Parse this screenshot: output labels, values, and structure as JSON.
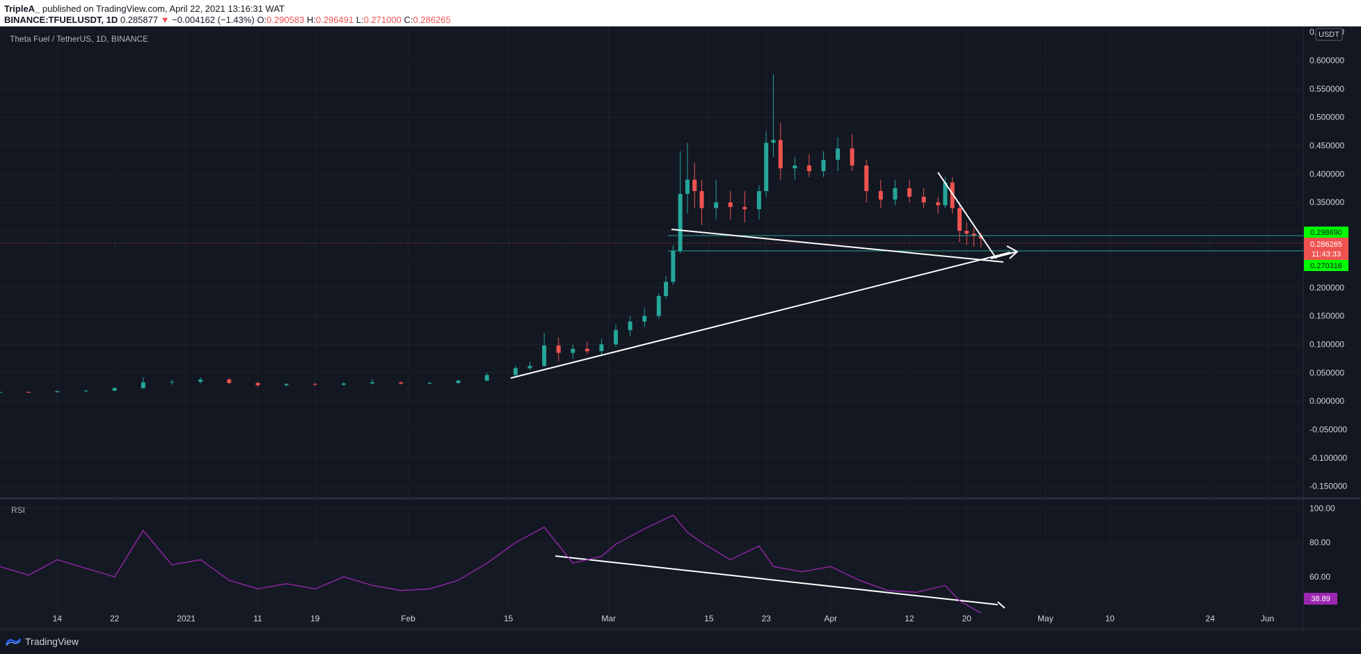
{
  "header": {
    "author": "TripleA_",
    "published": " published on TradingView.com, April 22, 2021 13:16:31 WAT",
    "symbol": "BINANCE:TFUELUSDT, 1D",
    "last": "0.285877",
    "change_arrow": "▼",
    "change": "−0.004162 (−1.43%)",
    "o_label": "O:",
    "o_val": "0.290583",
    "h_label": "H:",
    "h_val": "0.296491",
    "l_label": "L:",
    "l_val": "0.271000",
    "c_label": "C:",
    "c_val": "0.286265"
  },
  "chart": {
    "legend": "Theta Fuel / TetherUS, 1D, BINANCE",
    "currency": "USDT",
    "price_axis_ticks": [
      "0.650000",
      "0.600000",
      "0.550000",
      "0.500000",
      "0.450000",
      "0.400000",
      "0.350000",
      "0.300000",
      "0.250000",
      "0.200000",
      "0.150000",
      "0.100000",
      "0.050000",
      "0.000000",
      "-0.050000",
      "-0.100000",
      "-0.150000"
    ],
    "price_tag_top": "0.298690",
    "price_tag_current": "0.286265",
    "price_tag_timer": "11:43:33",
    "price_tag_bottom": "0.270316",
    "rsi_label": "RSI",
    "rsi_ticks": [
      "100.00",
      "80.00",
      "60.00"
    ],
    "rsi_value": "38.89",
    "time_labels": [
      "14",
      "22",
      "2021",
      "11",
      "19",
      "Feb",
      "15",
      "Mar",
      "15",
      "23",
      "Apr",
      "12",
      "20",
      "May",
      "10",
      "24",
      "Jun"
    ]
  },
  "colors": {
    "background": "#131722",
    "up": "#26a69a",
    "down": "#ef5350",
    "rsi_line": "#9c27b0",
    "green_tag": "#00ff00"
  },
  "footer": {
    "brand": "TradingView"
  },
  "chart_data": [
    {
      "type": "candlestick",
      "title": "Theta Fuel / TetherUS, 1D, BINANCE",
      "ylim": [
        -0.17,
        0.66
      ],
      "x_range": [
        "2020-12-06",
        "2021-06-06"
      ],
      "candles": [
        {
          "d": "2020-12-06",
          "o": 0.0155,
          "h": 0.0168,
          "l": 0.0148,
          "c": 0.016
        },
        {
          "d": "2020-12-10",
          "o": 0.016,
          "h": 0.0172,
          "l": 0.015,
          "c": 0.0158
        },
        {
          "d": "2020-12-14",
          "o": 0.0158,
          "h": 0.018,
          "l": 0.015,
          "c": 0.0175
        },
        {
          "d": "2020-12-18",
          "o": 0.0175,
          "h": 0.02,
          "l": 0.0165,
          "c": 0.0185
        },
        {
          "d": "2020-12-22",
          "o": 0.0185,
          "h": 0.024,
          "l": 0.0175,
          "c": 0.023
        },
        {
          "d": "2020-12-26",
          "o": 0.023,
          "h": 0.042,
          "l": 0.022,
          "c": 0.033
        },
        {
          "d": "2020-12-30",
          "o": 0.033,
          "h": 0.038,
          "l": 0.029,
          "c": 0.034
        },
        {
          "d": "2021-01-03",
          "o": 0.034,
          "h": 0.042,
          "l": 0.031,
          "c": 0.038
        },
        {
          "d": "2021-01-07",
          "o": 0.038,
          "h": 0.041,
          "l": 0.03,
          "c": 0.032
        },
        {
          "d": "2021-01-11",
          "o": 0.032,
          "h": 0.034,
          "l": 0.025,
          "c": 0.028
        },
        {
          "d": "2021-01-15",
          "o": 0.028,
          "h": 0.032,
          "l": 0.026,
          "c": 0.03
        },
        {
          "d": "2021-01-19",
          "o": 0.03,
          "h": 0.032,
          "l": 0.027,
          "c": 0.029
        },
        {
          "d": "2021-01-23",
          "o": 0.029,
          "h": 0.033,
          "l": 0.027,
          "c": 0.031
        },
        {
          "d": "2021-01-27",
          "o": 0.031,
          "h": 0.039,
          "l": 0.029,
          "c": 0.033
        },
        {
          "d": "2021-01-31",
          "o": 0.033,
          "h": 0.035,
          "l": 0.029,
          "c": 0.031
        },
        {
          "d": "2021-02-04",
          "o": 0.031,
          "h": 0.034,
          "l": 0.029,
          "c": 0.032
        },
        {
          "d": "2021-02-08",
          "o": 0.032,
          "h": 0.038,
          "l": 0.03,
          "c": 0.036
        },
        {
          "d": "2021-02-12",
          "o": 0.036,
          "h": 0.05,
          "l": 0.035,
          "c": 0.046
        },
        {
          "d": "2021-02-16",
          "o": 0.046,
          "h": 0.062,
          "l": 0.044,
          "c": 0.058
        },
        {
          "d": "2021-02-18",
          "o": 0.058,
          "h": 0.07,
          "l": 0.055,
          "c": 0.062
        },
        {
          "d": "2021-02-20",
          "o": 0.062,
          "h": 0.12,
          "l": 0.06,
          "c": 0.098
        },
        {
          "d": "2021-02-22",
          "o": 0.098,
          "h": 0.112,
          "l": 0.07,
          "c": 0.085
        },
        {
          "d": "2021-02-24",
          "o": 0.085,
          "h": 0.1,
          "l": 0.075,
          "c": 0.092
        },
        {
          "d": "2021-02-26",
          "o": 0.092,
          "h": 0.105,
          "l": 0.083,
          "c": 0.088
        },
        {
          "d": "2021-02-28",
          "o": 0.088,
          "h": 0.11,
          "l": 0.08,
          "c": 0.1
        },
        {
          "d": "2021-03-02",
          "o": 0.1,
          "h": 0.135,
          "l": 0.095,
          "c": 0.125
        },
        {
          "d": "2021-03-04",
          "o": 0.125,
          "h": 0.15,
          "l": 0.115,
          "c": 0.14
        },
        {
          "d": "2021-03-06",
          "o": 0.14,
          "h": 0.165,
          "l": 0.13,
          "c": 0.15
        },
        {
          "d": "2021-03-08",
          "o": 0.15,
          "h": 0.19,
          "l": 0.145,
          "c": 0.185
        },
        {
          "d": "2021-03-09",
          "o": 0.185,
          "h": 0.22,
          "l": 0.18,
          "c": 0.21
        },
        {
          "d": "2021-03-10",
          "o": 0.21,
          "h": 0.275,
          "l": 0.205,
          "c": 0.265
        },
        {
          "d": "2021-03-11",
          "o": 0.265,
          "h": 0.44,
          "l": 0.26,
          "c": 0.365
        },
        {
          "d": "2021-03-12",
          "o": 0.365,
          "h": 0.455,
          "l": 0.33,
          "c": 0.39
        },
        {
          "d": "2021-03-13",
          "o": 0.39,
          "h": 0.42,
          "l": 0.34,
          "c": 0.37
        },
        {
          "d": "2021-03-14",
          "o": 0.37,
          "h": 0.39,
          "l": 0.31,
          "c": 0.34
        },
        {
          "d": "2021-03-16",
          "o": 0.34,
          "h": 0.39,
          "l": 0.32,
          "c": 0.35
        },
        {
          "d": "2021-03-18",
          "o": 0.35,
          "h": 0.37,
          "l": 0.32,
          "c": 0.342
        },
        {
          "d": "2021-03-20",
          "o": 0.342,
          "h": 0.37,
          "l": 0.315,
          "c": 0.338
        },
        {
          "d": "2021-03-22",
          "o": 0.338,
          "h": 0.38,
          "l": 0.32,
          "c": 0.37
        },
        {
          "d": "2021-03-23",
          "o": 0.37,
          "h": 0.475,
          "l": 0.36,
          "c": 0.455
        },
        {
          "d": "2021-03-24",
          "o": 0.455,
          "h": 0.575,
          "l": 0.43,
          "c": 0.46
        },
        {
          "d": "2021-03-25",
          "o": 0.46,
          "h": 0.49,
          "l": 0.39,
          "c": 0.41
        },
        {
          "d": "2021-03-27",
          "o": 0.41,
          "h": 0.43,
          "l": 0.39,
          "c": 0.415
        },
        {
          "d": "2021-03-29",
          "o": 0.415,
          "h": 0.435,
          "l": 0.395,
          "c": 0.405
        },
        {
          "d": "2021-03-31",
          "o": 0.405,
          "h": 0.44,
          "l": 0.395,
          "c": 0.425
        },
        {
          "d": "2021-04-02",
          "o": 0.425,
          "h": 0.465,
          "l": 0.405,
          "c": 0.445
        },
        {
          "d": "2021-04-04",
          "o": 0.445,
          "h": 0.47,
          "l": 0.405,
          "c": 0.415
        },
        {
          "d": "2021-04-06",
          "o": 0.415,
          "h": 0.425,
          "l": 0.35,
          "c": 0.37
        },
        {
          "d": "2021-04-08",
          "o": 0.37,
          "h": 0.39,
          "l": 0.34,
          "c": 0.355
        },
        {
          "d": "2021-04-10",
          "o": 0.355,
          "h": 0.39,
          "l": 0.345,
          "c": 0.375
        },
        {
          "d": "2021-04-12",
          "o": 0.375,
          "h": 0.39,
          "l": 0.35,
          "c": 0.36
        },
        {
          "d": "2021-04-14",
          "o": 0.36,
          "h": 0.375,
          "l": 0.34,
          "c": 0.35
        },
        {
          "d": "2021-04-16",
          "o": 0.35,
          "h": 0.36,
          "l": 0.33,
          "c": 0.345
        },
        {
          "d": "2021-04-17",
          "o": 0.345,
          "h": 0.395,
          "l": 0.34,
          "c": 0.385
        },
        {
          "d": "2021-04-18",
          "o": 0.385,
          "h": 0.395,
          "l": 0.33,
          "c": 0.34
        },
        {
          "d": "2021-04-19",
          "o": 0.34,
          "h": 0.35,
          "l": 0.28,
          "c": 0.3
        },
        {
          "d": "2021-04-20",
          "o": 0.3,
          "h": 0.315,
          "l": 0.275,
          "c": 0.295
        },
        {
          "d": "2021-04-21",
          "o": 0.295,
          "h": 0.305,
          "l": 0.272,
          "c": 0.2906
        },
        {
          "d": "2021-04-22",
          "o": 0.2906,
          "h": 0.2965,
          "l": 0.271,
          "c": 0.2863
        }
      ]
    },
    {
      "type": "line",
      "title": "RSI",
      "ylim": [
        30,
        105
      ],
      "series": [
        {
          "x": [
            "2020-12-06",
            "2020-12-10",
            "2020-12-14",
            "2020-12-18",
            "2020-12-22",
            "2020-12-26",
            "2020-12-30",
            "2021-01-03",
            "2021-01-07",
            "2021-01-11",
            "2021-01-15",
            "2021-01-19",
            "2021-01-23",
            "2021-01-27",
            "2021-01-31",
            "2021-02-04",
            "2021-02-08",
            "2021-02-12",
            "2021-02-16",
            "2021-02-20",
            "2021-02-24",
            "2021-02-28",
            "2021-03-02",
            "2021-03-06",
            "2021-03-10",
            "2021-03-12",
            "2021-03-14",
            "2021-03-18",
            "2021-03-22",
            "2021-03-24",
            "2021-03-28",
            "2021-04-01",
            "2021-04-05",
            "2021-04-09",
            "2021-04-13",
            "2021-04-17",
            "2021-04-19",
            "2021-04-22"
          ],
          "values": [
            66,
            61,
            70,
            65,
            60,
            87,
            67,
            70,
            58,
            53,
            56,
            53,
            60,
            55,
            52,
            53,
            58,
            68,
            80,
            89,
            68,
            72,
            79,
            88,
            96,
            86,
            80,
            70,
            78,
            66,
            63,
            66,
            58,
            52,
            51,
            55,
            46,
            38.89
          ]
        }
      ]
    }
  ]
}
